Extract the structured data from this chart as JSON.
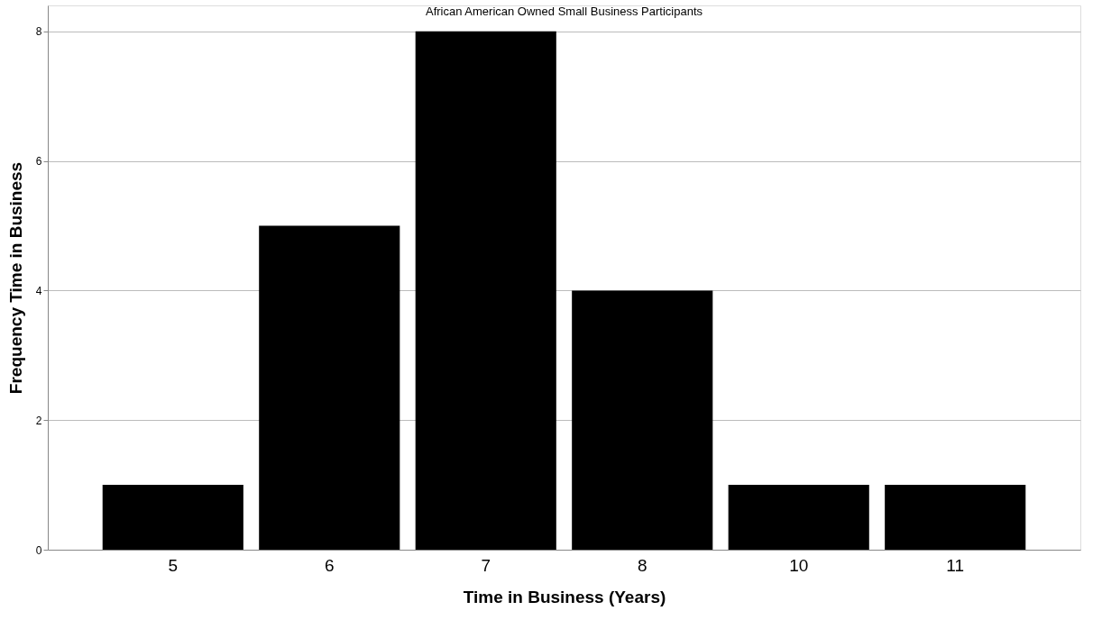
{
  "chart_data": {
    "type": "bar",
    "title": "African American Owned Small Business Participants",
    "xlabel": "Time in Business (Years)",
    "ylabel": "Frequency Time in Business",
    "categories": [
      "5",
      "6",
      "7",
      "8",
      "10",
      "11"
    ],
    "values": [
      1,
      5,
      8,
      4,
      1,
      1
    ],
    "color": "#000000",
    "ylim": [
      0,
      8.4
    ],
    "yticks": [
      0,
      2,
      4,
      6,
      8
    ],
    "grid": "y"
  }
}
